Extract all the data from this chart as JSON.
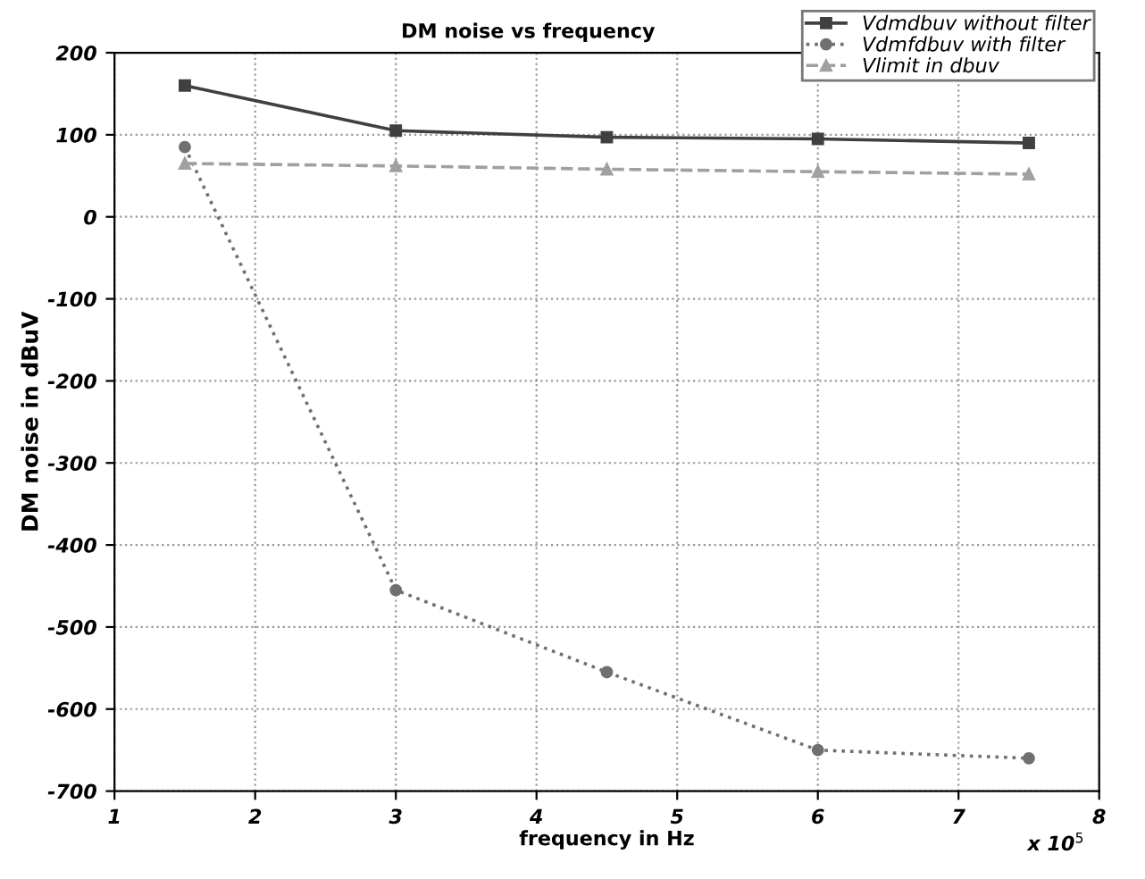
{
  "chart_data": {
    "type": "line",
    "title": "DM noise vs frequency",
    "xlabel": "frequency in Hz",
    "ylabel": "DM noise in dBuV",
    "x": [
      1.5,
      3,
      4.5,
      6,
      7.5
    ],
    "series": [
      {
        "name": "Vdmdbuv without filter",
        "color": "#404040",
        "values": [
          160,
          105,
          97,
          95,
          90
        ],
        "marker": "square",
        "line_style": "solid"
      },
      {
        "name": "Vdmfdbuv with filter",
        "color": "#707070",
        "values": [
          85,
          -455,
          -555,
          -650,
          -660
        ],
        "marker": "circle",
        "line_style": "dotted"
      },
      {
        "name": "Vlimit in dbuv",
        "color": "#a0a0a0",
        "values": [
          65,
          62,
          58,
          55,
          52
        ],
        "marker": "triangle",
        "line_style": "dashed"
      }
    ],
    "xlim": [
      1,
      8
    ],
    "xticks": [
      1,
      2,
      3,
      4,
      5,
      6,
      7,
      8
    ],
    "ylim": [
      -700,
      200
    ],
    "yticks": [
      -700,
      -600,
      -500,
      -400,
      -300,
      -200,
      -100,
      0,
      100,
      200
    ],
    "grid": true,
    "legend": "top right",
    "annotations": [
      "x 10$^{5}$"
    ]
  }
}
